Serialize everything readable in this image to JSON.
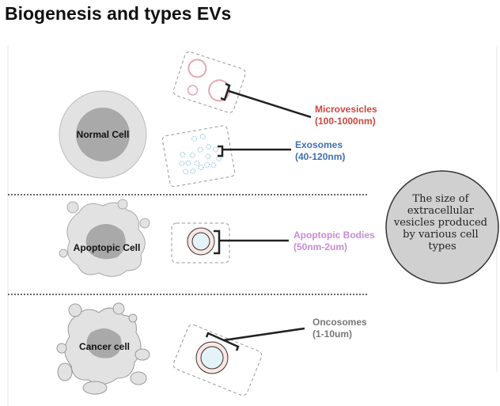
{
  "title": "Biogenesis and types EVs",
  "cells": {
    "normal": "Normal Cell",
    "apoptopic": "Apoptopic Cell",
    "cancer": "Cancer cell"
  },
  "vesicles": {
    "microvesicles": {
      "name": "Microvesicles",
      "size": "(100-1000nm)",
      "color": "#d0463c"
    },
    "exosomes": {
      "name": "Exosomes",
      "size": "(40-120nm)",
      "color": "#3f6fb5"
    },
    "apoptopic_bodies": {
      "name": "Apoptopic Bodies",
      "size": "(50nm-2um)",
      "color": "#c98ad6"
    },
    "oncosomes": {
      "name": "Oncosomes",
      "size": "(1-10um)",
      "color": "#777777"
    }
  },
  "summary": {
    "lines": [
      "The size of",
      "extracellular",
      "vesicles produced",
      "by various cell",
      "types"
    ]
  }
}
